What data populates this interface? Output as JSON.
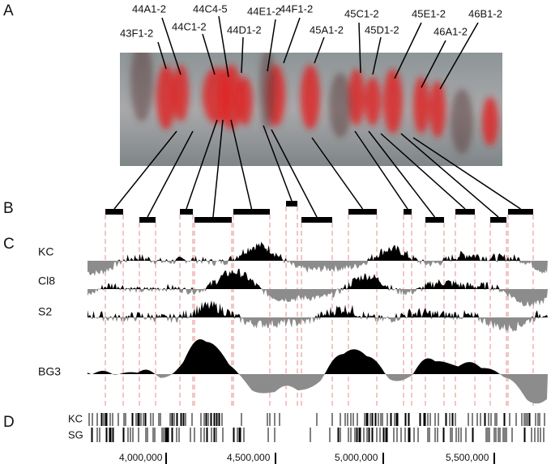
{
  "panels": {
    "a": "A",
    "b": "B",
    "c": "C",
    "d": "D"
  },
  "bands": [
    "43F1-2",
    "44A1-2",
    "44C1-2",
    "44C4-5",
    "44D1-2",
    "44E1-2",
    "44F1-2",
    "45A1-2",
    "45C1-2",
    "45D1-2",
    "45E1-2",
    "46A1-2",
    "46B1-2"
  ],
  "tracks": [
    "KC",
    "Cl8",
    "S2",
    "BG3"
  ],
  "sites": [
    "KC",
    "SG"
  ],
  "axis": [
    "4,000,000",
    "4,500,000",
    "5,000,000",
    "5,500,000"
  ]
}
